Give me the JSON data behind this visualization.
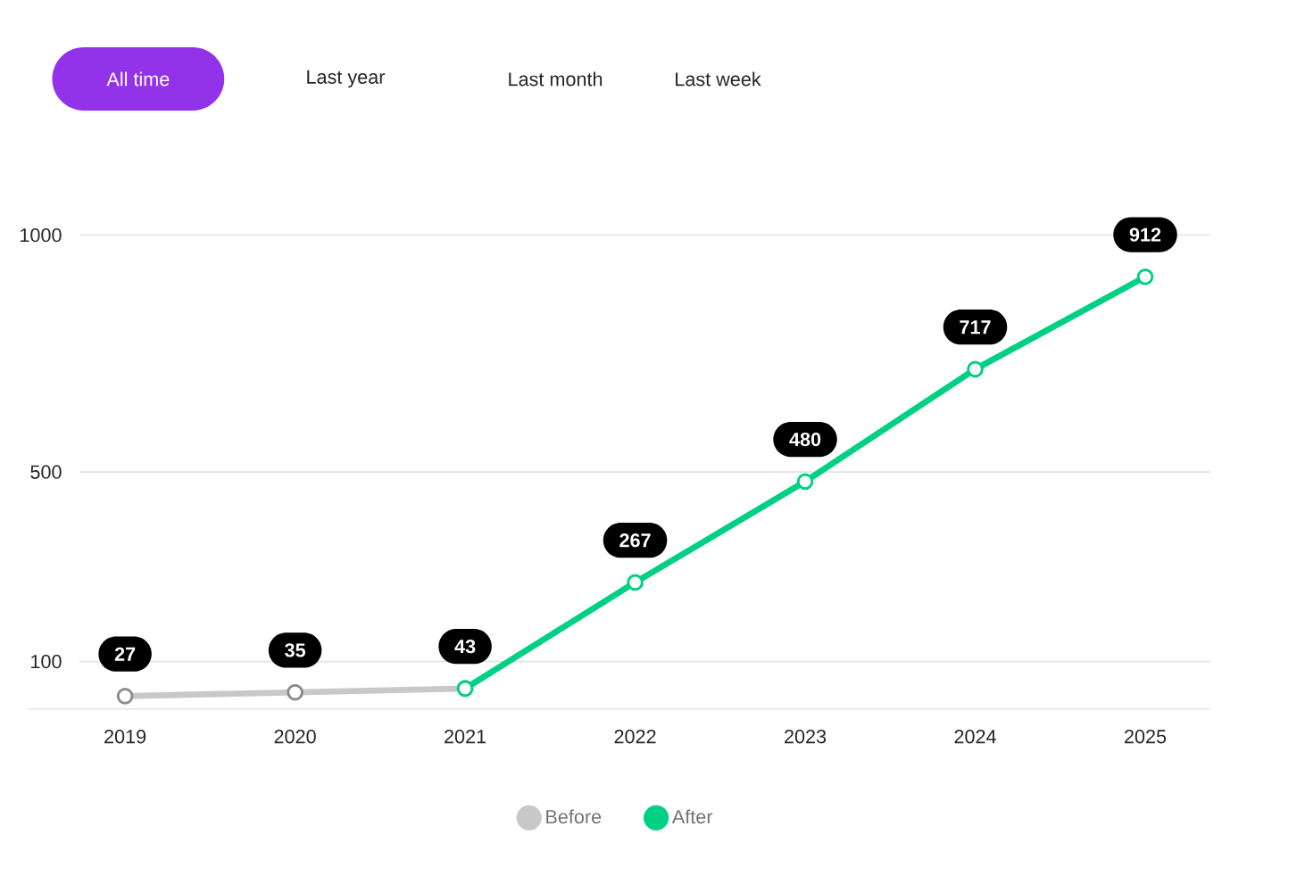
{
  "chart_data": {
    "type": "line",
    "annotations": [
      "All time",
      "Last year",
      "Last month",
      "Last week"
    ],
    "categories": [
      "2019",
      "2020",
      "2021",
      "2022",
      "2023",
      "2024",
      "2025"
    ],
    "series": [
      {
        "name": "Before",
        "color": "#c8c8c8",
        "values": [
          27,
          35,
          43,
          null,
          null,
          null,
          null
        ],
        "value_labels": [
          "27",
          "35",
          "43",
          null,
          null,
          null,
          null
        ]
      },
      {
        "name": "After",
        "color": "#00d084",
        "values": [
          null,
          null,
          43,
          267,
          480,
          717,
          912
        ],
        "value_labels": [
          null,
          null,
          null,
          "267",
          "480",
          "717",
          "912"
        ]
      }
    ],
    "ylim": [
      0,
      1000
    ],
    "yticks": [
      100,
      500,
      1000
    ],
    "grid": "y",
    "legend": "bottom",
    "marker": "circle",
    "line_style": "solid"
  }
}
